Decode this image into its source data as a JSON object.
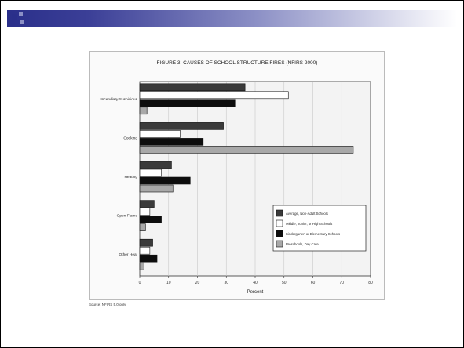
{
  "slide": {
    "accent_color": "#2a2f8a",
    "source_note": "Source: NFIRS 5.0 only"
  },
  "chart_data": {
    "type": "bar",
    "orientation": "horizontal",
    "title": "FIGURE 3. CAUSES OF SCHOOL STRUCTURE FIRES (NFIRS 2000)",
    "xlabel": "Percent",
    "ylabel": "",
    "xlim": [
      0,
      80
    ],
    "xticks": [
      "0",
      "10",
      "20",
      "30",
      "40",
      "50",
      "60",
      "70",
      "80"
    ],
    "grid": true,
    "legend_position": "inside-bottom-right",
    "categories": [
      "Incendiary/Suspicious",
      "Cooking",
      "Heating",
      "Open Flame",
      "Other Heat"
    ],
    "series": [
      {
        "name": "Average, Non-Adult Schools",
        "color": "#3a3a3a",
        "values": [
          36.5,
          29,
          11,
          5,
          4.5
        ]
      },
      {
        "name": "Middle, Junior, or High Schools",
        "color": "#ffffff",
        "values": [
          51.5,
          14,
          7.5,
          3.5,
          3.5
        ]
      },
      {
        "name": "Kindergarten or Elementary Schools",
        "color": "#0d0d0d",
        "values": [
          33,
          22,
          17.5,
          7.5,
          6
        ]
      },
      {
        "name": "Preschools, Day Care",
        "color": "#a8a8a8",
        "values": [
          2.5,
          74,
          11.5,
          2,
          1.5
        ]
      }
    ]
  }
}
